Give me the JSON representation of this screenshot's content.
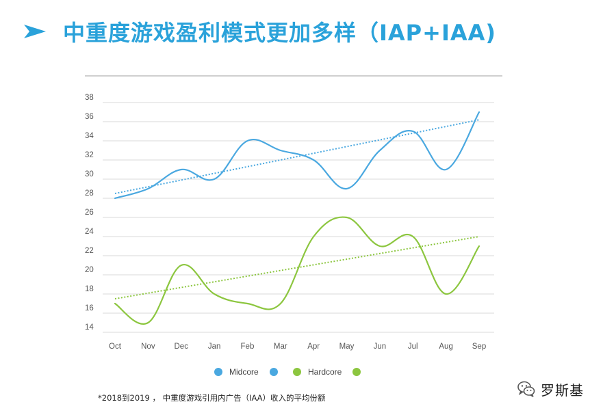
{
  "header": {
    "title": "中重度游戏盈利模式更加多样（IAP+IAA)",
    "arrow_icon": "paper-plane-arrow-icon"
  },
  "colors": {
    "accent": "#2aa2da",
    "midcore": "#4aa8e0",
    "hardcore": "#8cc63f",
    "grid": "#d9d9d9"
  },
  "chart_data": {
    "type": "line",
    "categories": [
      "Oct",
      "Nov",
      "Dec",
      "Jan",
      "Feb",
      "Mar",
      "Apr",
      "May",
      "Jun",
      "Jul",
      "Aug",
      "Sep"
    ],
    "ylim": [
      14,
      38
    ],
    "yticks": [
      14,
      16,
      18,
      20,
      22,
      24,
      26,
      28,
      30,
      32,
      34,
      36,
      38
    ],
    "grid": true,
    "legend_position": "bottom-center",
    "series": [
      {
        "name": "Midcore",
        "color": "#4aa8e0",
        "values": [
          28,
          29,
          31,
          30,
          34,
          33,
          32,
          29,
          33,
          35,
          31,
          37
        ],
        "trendline": [
          28.5,
          36.2
        ]
      },
      {
        "name": "Hardcore",
        "color": "#8cc63f",
        "values": [
          17,
          15,
          21,
          18,
          17,
          17,
          24,
          26,
          23,
          24,
          18,
          23
        ],
        "trendline": [
          17.5,
          24
        ]
      }
    ]
  },
  "footnote": "*2018到2019 ， 中重度游戏引用内广告（IAA）收入的平均份额",
  "watermark": {
    "text": "罗斯基",
    "icon": "wechat-icon"
  }
}
